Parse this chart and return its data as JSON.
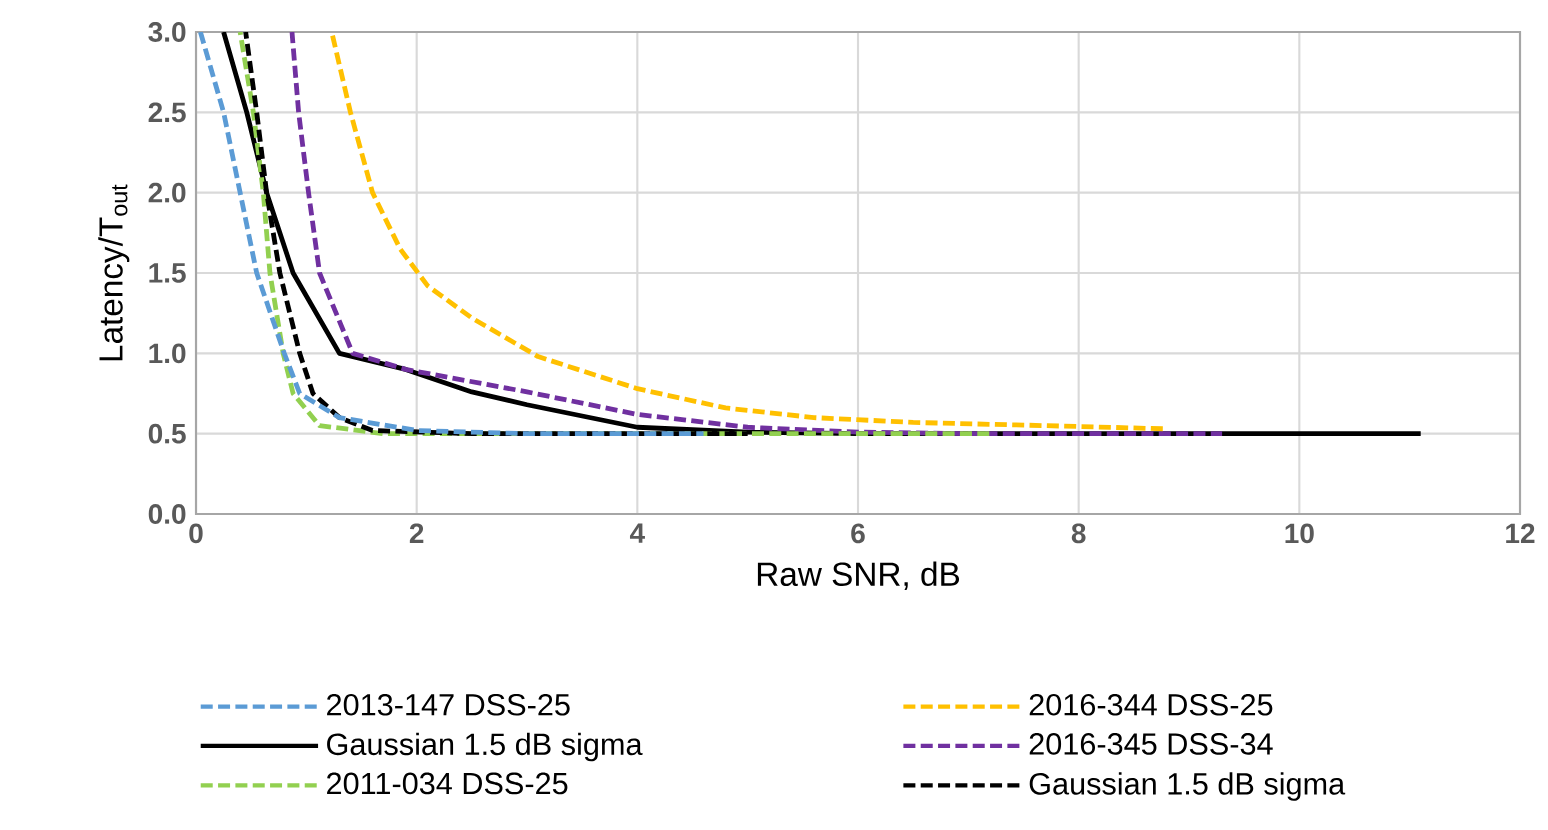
{
  "chart_data": {
    "type": "line",
    "xlabel": "Raw SNR, dB",
    "ylabel": "Latency/T$_{out}$",
    "xlim": [
      0,
      12
    ],
    "xticks": [
      0,
      2,
      4,
      6,
      8,
      10,
      12
    ],
    "ylim": [
      0,
      3
    ],
    "yticks": [
      {
        "value": 0,
        "label": "0.0"
      },
      {
        "value": 0.5,
        "label": "0.5"
      },
      {
        "value": 1,
        "label": "1.0"
      },
      {
        "value": 1.5,
        "label": "1.5"
      },
      {
        "value": 2,
        "label": "2.0"
      },
      {
        "value": 2.5,
        "label": "2.5"
      },
      {
        "value": 3,
        "label": "3.0"
      }
    ],
    "grid": true,
    "legend": "bottom",
    "series": [
      {
        "name": "2013-147 DSS-25",
        "color": "#5b9bd5",
        "line_style": "dashed",
        "x": [
          0.04,
          0.25,
          0.4,
          0.55,
          0.8,
          0.94,
          1.3,
          2.0,
          3.0,
          4.6
        ],
        "values": [
          3.0,
          2.5,
          2.0,
          1.5,
          1.0,
          0.75,
          0.6,
          0.52,
          0.5,
          0.5
        ]
      },
      {
        "name": "Gaussian 1.5 dB sigma",
        "color": "#000000",
        "line_style": "solid",
        "x": [
          0.25,
          0.46,
          0.64,
          0.88,
          1.3,
          1.9,
          2.5,
          3.0,
          4.0,
          5.0,
          6.0,
          11.1
        ],
        "values": [
          3.0,
          2.5,
          2.0,
          1.5,
          1.0,
          0.9,
          0.76,
          0.68,
          0.54,
          0.51,
          0.5,
          0.5
        ]
      },
      {
        "name": "2011-034 DSS-25",
        "color": "#92d050",
        "line_style": "dashed",
        "x": [
          0.4,
          0.52,
          0.61,
          0.67,
          0.79,
          0.88,
          1.12,
          1.7,
          7.2
        ],
        "values": [
          3.0,
          2.5,
          2.0,
          1.5,
          1.0,
          0.75,
          0.55,
          0.5,
          0.5
        ]
      },
      {
        "name": "2016-344 DSS-25",
        "color": "#ffc000",
        "line_style": "dashed",
        "x": [
          1.23,
          1.4,
          1.6,
          1.85,
          2.1,
          2.5,
          3.1,
          4.0,
          4.8,
          5.6,
          6.5,
          7.7,
          8.8
        ],
        "values": [
          3.0,
          2.5,
          2.0,
          1.65,
          1.42,
          1.22,
          0.98,
          0.78,
          0.66,
          0.6,
          0.57,
          0.55,
          0.53
        ]
      },
      {
        "name": "2016-345 DSS-34",
        "color": "#7030a0",
        "line_style": "dashed",
        "x": [
          0.87,
          0.93,
          1.02,
          1.12,
          1.42,
          1.9,
          3.0,
          4.0,
          5.0,
          6.0,
          7.0,
          9.3
        ],
        "values": [
          3.0,
          2.5,
          2.0,
          1.5,
          1.0,
          0.9,
          0.76,
          0.62,
          0.54,
          0.51,
          0.5,
          0.5
        ]
      },
      {
        "name": "Gaussian 1.5 dB sigma",
        "color": "#000000",
        "line_style": "dashed",
        "x": [
          0.45,
          0.55,
          0.64,
          0.76,
          0.94,
          1.06,
          1.3,
          1.6,
          2.5,
          5.0
        ],
        "values": [
          3.0,
          2.5,
          2.0,
          1.5,
          1.0,
          0.75,
          0.6,
          0.52,
          0.5,
          0.5
        ]
      }
    ]
  }
}
